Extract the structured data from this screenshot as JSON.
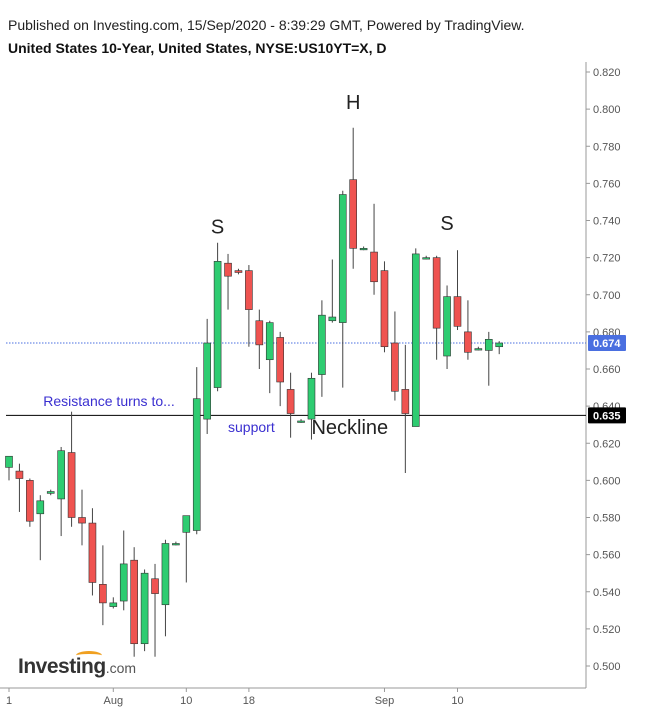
{
  "header": {
    "published": "Published on Investing.com, 15/Sep/2020 - 8:39:29 GMT, Powered by TradingView.",
    "title": "United States 10-Year, United States, NYSE:US10YT=X, D"
  },
  "logo": {
    "main": "Investing",
    "suffix": ".com"
  },
  "chart_data": {
    "type": "candlestick",
    "ylim": [
      0.49,
      0.83
    ],
    "y_ticks": [
      "0.820",
      "0.800",
      "0.780",
      "0.760",
      "0.740",
      "0.720",
      "0.700",
      "0.680",
      "0.660",
      "0.640",
      "0.620",
      "0.600",
      "0.580",
      "0.560",
      "0.540",
      "0.520",
      "0.500"
    ],
    "x_ticks": [
      {
        "label": "1",
        "index": 0
      },
      {
        "label": "Aug",
        "index": 10
      },
      {
        "label": "10",
        "index": 17
      },
      {
        "label": "18",
        "index": 23
      },
      {
        "label": "Sep",
        "index": 36
      },
      {
        "label": "10",
        "index": 43
      }
    ],
    "candles": [
      {
        "o": 0.607,
        "h": 0.613,
        "l": 0.6,
        "c": 0.613
      },
      {
        "o": 0.605,
        "h": 0.609,
        "l": 0.583,
        "c": 0.601
      },
      {
        "o": 0.6,
        "h": 0.601,
        "l": 0.575,
        "c": 0.578
      },
      {
        "o": 0.582,
        "h": 0.592,
        "l": 0.557,
        "c": 0.589
      },
      {
        "o": 0.593,
        "h": 0.595,
        "l": 0.592,
        "c": 0.594
      },
      {
        "o": 0.59,
        "h": 0.618,
        "l": 0.57,
        "c": 0.616
      },
      {
        "o": 0.615,
        "h": 0.637,
        "l": 0.575,
        "c": 0.58
      },
      {
        "o": 0.58,
        "h": 0.595,
        "l": 0.565,
        "c": 0.577
      },
      {
        "o": 0.577,
        "h": 0.585,
        "l": 0.538,
        "c": 0.545
      },
      {
        "o": 0.544,
        "h": 0.565,
        "l": 0.522,
        "c": 0.534
      },
      {
        "o": 0.532,
        "h": 0.537,
        "l": 0.531,
        "c": 0.534
      },
      {
        "o": 0.535,
        "h": 0.573,
        "l": 0.53,
        "c": 0.555
      },
      {
        "o": 0.557,
        "h": 0.564,
        "l": 0.505,
        "c": 0.512
      },
      {
        "o": 0.512,
        "h": 0.552,
        "l": 0.508,
        "c": 0.55
      },
      {
        "o": 0.547,
        "h": 0.555,
        "l": 0.505,
        "c": 0.539
      },
      {
        "o": 0.533,
        "h": 0.568,
        "l": 0.516,
        "c": 0.566
      },
      {
        "o": 0.566,
        "h": 0.567,
        "l": 0.565,
        "c": 0.566
      },
      {
        "o": 0.572,
        "h": 0.58,
        "l": 0.545,
        "c": 0.581
      },
      {
        "o": 0.573,
        "h": 0.661,
        "l": 0.571,
        "c": 0.644
      },
      {
        "o": 0.633,
        "h": 0.687,
        "l": 0.625,
        "c": 0.674
      },
      {
        "o": 0.65,
        "h": 0.728,
        "l": 0.648,
        "c": 0.718
      },
      {
        "o": 0.717,
        "h": 0.722,
        "l": 0.692,
        "c": 0.71
      },
      {
        "o": 0.713,
        "h": 0.714,
        "l": 0.711,
        "c": 0.712
      },
      {
        "o": 0.713,
        "h": 0.716,
        "l": 0.672,
        "c": 0.692
      },
      {
        "o": 0.686,
        "h": 0.692,
        "l": 0.66,
        "c": 0.673
      },
      {
        "o": 0.665,
        "h": 0.686,
        "l": 0.647,
        "c": 0.685
      },
      {
        "o": 0.677,
        "h": 0.68,
        "l": 0.64,
        "c": 0.653
      },
      {
        "o": 0.649,
        "h": 0.658,
        "l": 0.623,
        "c": 0.636
      },
      {
        "o": 0.632,
        "h": 0.633,
        "l": 0.631,
        "c": 0.632
      },
      {
        "o": 0.633,
        "h": 0.658,
        "l": 0.622,
        "c": 0.655
      },
      {
        "o": 0.657,
        "h": 0.697,
        "l": 0.645,
        "c": 0.689
      },
      {
        "o": 0.686,
        "h": 0.719,
        "l": 0.685,
        "c": 0.688
      },
      {
        "o": 0.685,
        "h": 0.756,
        "l": 0.65,
        "c": 0.754
      },
      {
        "o": 0.762,
        "h": 0.79,
        "l": 0.714,
        "c": 0.725
      },
      {
        "o": 0.725,
        "h": 0.726,
        "l": 0.724,
        "c": 0.725
      },
      {
        "o": 0.723,
        "h": 0.749,
        "l": 0.7,
        "c": 0.707
      },
      {
        "o": 0.713,
        "h": 0.718,
        "l": 0.669,
        "c": 0.672
      },
      {
        "o": 0.674,
        "h": 0.691,
        "l": 0.643,
        "c": 0.648
      },
      {
        "o": 0.649,
        "h": 0.673,
        "l": 0.604,
        "c": 0.636
      },
      {
        "o": 0.629,
        "h": 0.725,
        "l": 0.629,
        "c": 0.722
      },
      {
        "o": 0.72,
        "h": 0.721,
        "l": 0.719,
        "c": 0.72
      },
      {
        "o": 0.72,
        "h": 0.721,
        "l": 0.665,
        "c": 0.682
      },
      {
        "o": 0.667,
        "h": 0.705,
        "l": 0.66,
        "c": 0.699
      },
      {
        "o": 0.699,
        "h": 0.724,
        "l": 0.681,
        "c": 0.683
      },
      {
        "o": 0.68,
        "h": 0.697,
        "l": 0.665,
        "c": 0.669
      },
      {
        "o": 0.671,
        "h": 0.672,
        "l": 0.67,
        "c": 0.671
      },
      {
        "o": 0.67,
        "h": 0.68,
        "l": 0.651,
        "c": 0.676
      },
      {
        "o": 0.672,
        "h": 0.675,
        "l": 0.668,
        "c": 0.674
      }
    ],
    "current_price": {
      "value": 0.674,
      "label": "0.674",
      "color": "#4a6fe0"
    },
    "neckline": {
      "value": 0.635,
      "label": "0.635",
      "color": "#000000"
    },
    "pattern_labels": [
      {
        "text": "S",
        "index": 20,
        "value": 0.733
      },
      {
        "text": "H",
        "index": 33,
        "value": 0.8
      },
      {
        "text": "S",
        "index": 42,
        "value": 0.735
      }
    ],
    "annotations": [
      {
        "text": "Resistance turns to...",
        "index": 3,
        "value": 0.64,
        "color": "#3a2fd0",
        "size": 14
      },
      {
        "text": "support",
        "index": 21,
        "value": 0.626,
        "color": "#3a2fd0",
        "size": 14
      },
      {
        "text": "Neckline",
        "index": 29,
        "value": 0.625,
        "color": "#222222",
        "size": 20
      }
    ],
    "colors": {
      "up": "#2ecc71",
      "down": "#ef5350",
      "wick": "#444444",
      "axis": "#555555"
    }
  }
}
